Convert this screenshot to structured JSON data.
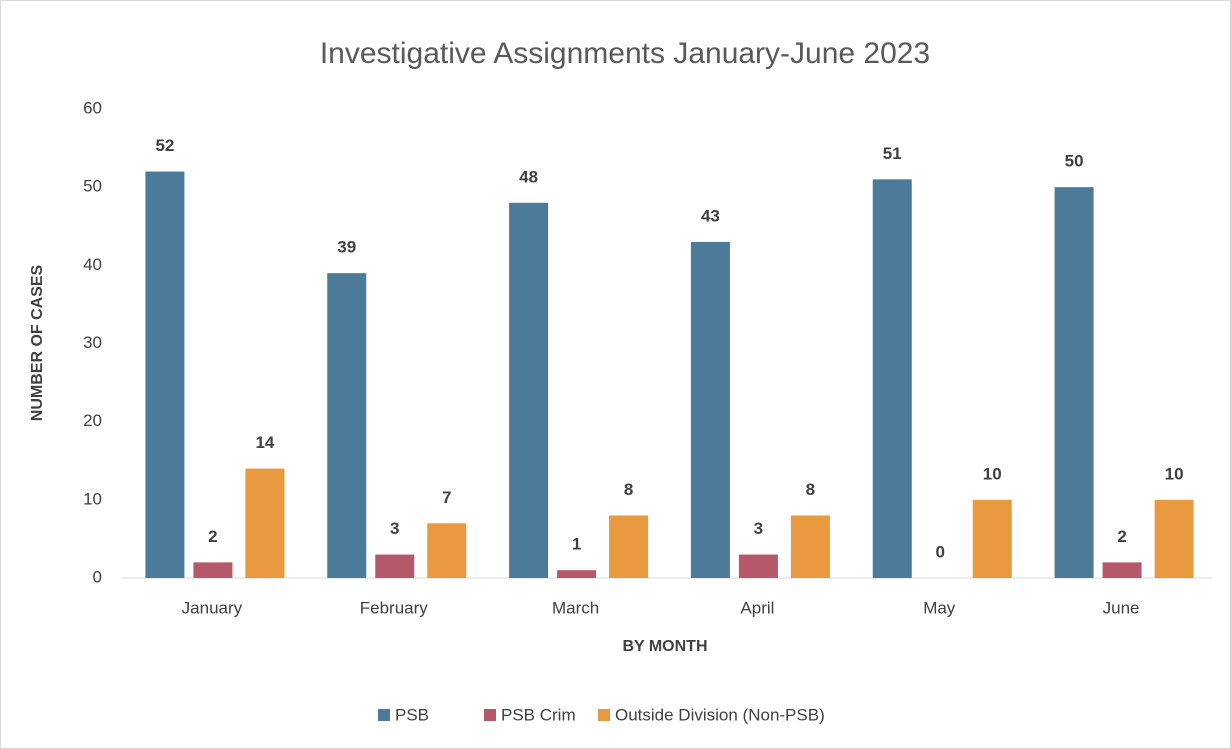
{
  "chart_data": {
    "type": "bar",
    "title": "Investigative Assignments January-June 2023",
    "categories": [
      "January",
      "February",
      "March",
      "April",
      "May",
      "June"
    ],
    "series": [
      {
        "name": "PSB",
        "color": "#4b7b98",
        "values": [
          52,
          39,
          48,
          43,
          51,
          50
        ]
      },
      {
        "name": "PSB Crim",
        "color": "#b5596a",
        "values": [
          2,
          3,
          1,
          3,
          0,
          2
        ]
      },
      {
        "name": "Outside Division (Non-PSB)",
        "color": "#e9993f",
        "values": [
          14,
          7,
          8,
          8,
          10,
          10
        ]
      }
    ],
    "ylim": [
      0,
      60
    ],
    "yticks": [
      0,
      10,
      20,
      30,
      40,
      50,
      60
    ],
    "grid": false,
    "xlabel": "BY MONTH",
    "ylabel": "NUMBER OF CASES",
    "legend": "bottom"
  }
}
